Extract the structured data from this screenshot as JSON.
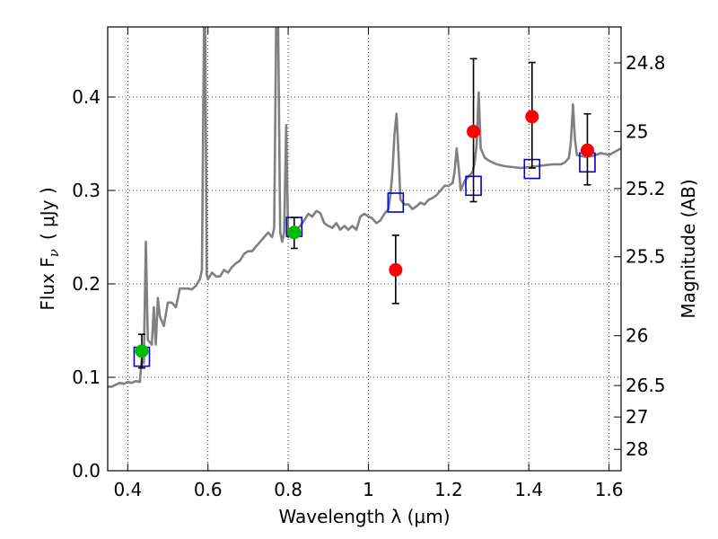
{
  "chart_data": {
    "type": "scatter",
    "title": "",
    "xlabel": "Wavelength  λ (μm)",
    "ylabel": "Flux  F",
    "ylabel_sub": "ν",
    "ylabel_unit": "( μJy )",
    "y2label": "Magnitude (AB)",
    "xlim": [
      0.35,
      1.63
    ],
    "ylim": [
      0.0,
      0.475
    ],
    "grid": true,
    "legend": "none",
    "x_ticks": [
      {
        "value": 0.4,
        "label": "0.4"
      },
      {
        "value": 0.6,
        "label": "0.6"
      },
      {
        "value": 0.8,
        "label": "0.8"
      },
      {
        "value": 1.0,
        "label": "1"
      },
      {
        "value": 1.2,
        "label": "1.2"
      },
      {
        "value": 1.4,
        "label": "1.4"
      },
      {
        "value": 1.6,
        "label": "1.6"
      }
    ],
    "y_ticks": [
      {
        "value": 0.0,
        "label": "0.0"
      },
      {
        "value": 0.1,
        "label": "0.1"
      },
      {
        "value": 0.2,
        "label": "0.2"
      },
      {
        "value": 0.3,
        "label": "0.3"
      },
      {
        "value": 0.4,
        "label": "0.4"
      }
    ],
    "mag_ticks": [
      {
        "value": 24.8,
        "label": "24.8"
      },
      {
        "value": 25.0,
        "label": "25"
      },
      {
        "value": 25.2,
        "label": "25.2"
      },
      {
        "value": 25.5,
        "label": "25.5"
      },
      {
        "value": 26.0,
        "label": "26"
      },
      {
        "value": 26.5,
        "label": "26.5"
      },
      {
        "value": 27.0,
        "label": "27"
      },
      {
        "value": 28.0,
        "label": "28"
      }
    ],
    "mag_zero_point": 23.9,
    "colors": {
      "model": "#808080",
      "green": "#00bb00",
      "red": "#ff0000",
      "blue": "#0000cc",
      "errorbar": "#000000"
    },
    "model_spectrum": [
      [
        0.35,
        0.09
      ],
      [
        0.36,
        0.09
      ],
      [
        0.37,
        0.092
      ],
      [
        0.38,
        0.094
      ],
      [
        0.39,
        0.093
      ],
      [
        0.4,
        0.095
      ],
      [
        0.41,
        0.094
      ],
      [
        0.42,
        0.096
      ],
      [
        0.43,
        0.095
      ],
      [
        0.435,
        0.12
      ],
      [
        0.44,
        0.115
      ],
      [
        0.445,
        0.245
      ],
      [
        0.45,
        0.14
      ],
      [
        0.46,
        0.135
      ],
      [
        0.465,
        0.175
      ],
      [
        0.47,
        0.135
      ],
      [
        0.475,
        0.185
      ],
      [
        0.48,
        0.165
      ],
      [
        0.49,
        0.155
      ],
      [
        0.5,
        0.18
      ],
      [
        0.51,
        0.18
      ],
      [
        0.52,
        0.175
      ],
      [
        0.53,
        0.195
      ],
      [
        0.54,
        0.195
      ],
      [
        0.55,
        0.195
      ],
      [
        0.56,
        0.194
      ],
      [
        0.57,
        0.198
      ],
      [
        0.58,
        0.205
      ],
      [
        0.585,
        0.215
      ],
      [
        0.59,
        0.475
      ],
      [
        0.593,
        0.475
      ],
      [
        0.597,
        0.21
      ],
      [
        0.6,
        0.205
      ],
      [
        0.61,
        0.212
      ],
      [
        0.62,
        0.208
      ],
      [
        0.63,
        0.208
      ],
      [
        0.64,
        0.215
      ],
      [
        0.65,
        0.212
      ],
      [
        0.66,
        0.218
      ],
      [
        0.67,
        0.222
      ],
      [
        0.68,
        0.225
      ],
      [
        0.69,
        0.232
      ],
      [
        0.7,
        0.235
      ],
      [
        0.71,
        0.235
      ],
      [
        0.72,
        0.24
      ],
      [
        0.73,
        0.245
      ],
      [
        0.74,
        0.25
      ],
      [
        0.75,
        0.255
      ],
      [
        0.76,
        0.25
      ],
      [
        0.765,
        0.26
      ],
      [
        0.77,
        0.475
      ],
      [
        0.775,
        0.475
      ],
      [
        0.78,
        0.255
      ],
      [
        0.785,
        0.245
      ],
      [
        0.79,
        0.255
      ],
      [
        0.795,
        0.37
      ],
      [
        0.8,
        0.25
      ],
      [
        0.81,
        0.255
      ],
      [
        0.82,
        0.258
      ],
      [
        0.83,
        0.262
      ],
      [
        0.84,
        0.268
      ],
      [
        0.85,
        0.275
      ],
      [
        0.86,
        0.272
      ],
      [
        0.87,
        0.278
      ],
      [
        0.88,
        0.276
      ],
      [
        0.89,
        0.265
      ],
      [
        0.9,
        0.262
      ],
      [
        0.91,
        0.26
      ],
      [
        0.92,
        0.265
      ],
      [
        0.93,
        0.258
      ],
      [
        0.94,
        0.262
      ],
      [
        0.95,
        0.258
      ],
      [
        0.96,
        0.262
      ],
      [
        0.97,
        0.258
      ],
      [
        0.98,
        0.272
      ],
      [
        0.99,
        0.275
      ],
      [
        1.0,
        0.272
      ],
      [
        1.01,
        0.27
      ],
      [
        1.02,
        0.265
      ],
      [
        1.03,
        0.268
      ],
      [
        1.04,
        0.275
      ],
      [
        1.05,
        0.28
      ],
      [
        1.055,
        0.295
      ],
      [
        1.06,
        0.32
      ],
      [
        1.065,
        0.36
      ],
      [
        1.07,
        0.382
      ],
      [
        1.075,
        0.34
      ],
      [
        1.08,
        0.29
      ],
      [
        1.09,
        0.285
      ],
      [
        1.1,
        0.285
      ],
      [
        1.11,
        0.28
      ],
      [
        1.12,
        0.283
      ],
      [
        1.13,
        0.287
      ],
      [
        1.14,
        0.285
      ],
      [
        1.15,
        0.29
      ],
      [
        1.16,
        0.292
      ],
      [
        1.17,
        0.295
      ],
      [
        1.18,
        0.3
      ],
      [
        1.19,
        0.305
      ],
      [
        1.2,
        0.305
      ],
      [
        1.21,
        0.308
      ],
      [
        1.215,
        0.32
      ],
      [
        1.22,
        0.345
      ],
      [
        1.225,
        0.325
      ],
      [
        1.23,
        0.3
      ],
      [
        1.24,
        0.31
      ],
      [
        1.25,
        0.315
      ],
      [
        1.26,
        0.32
      ],
      [
        1.265,
        0.33
      ],
      [
        1.27,
        0.35
      ],
      [
        1.275,
        0.405
      ],
      [
        1.28,
        0.345
      ],
      [
        1.29,
        0.335
      ],
      [
        1.3,
        0.332
      ],
      [
        1.32,
        0.328
      ],
      [
        1.34,
        0.326
      ],
      [
        1.36,
        0.325
      ],
      [
        1.38,
        0.324
      ],
      [
        1.4,
        0.325
      ],
      [
        1.42,
        0.326
      ],
      [
        1.44,
        0.327
      ],
      [
        1.46,
        0.328
      ],
      [
        1.48,
        0.328
      ],
      [
        1.49,
        0.33
      ],
      [
        1.5,
        0.335
      ],
      [
        1.505,
        0.352
      ],
      [
        1.51,
        0.392
      ],
      [
        1.515,
        0.355
      ],
      [
        1.52,
        0.338
      ],
      [
        1.53,
        0.337
      ],
      [
        1.54,
        0.336
      ],
      [
        1.56,
        0.337
      ],
      [
        1.58,
        0.34
      ],
      [
        1.6,
        0.338
      ],
      [
        1.63,
        0.345
      ]
    ],
    "observed_green": [
      {
        "x": 0.435,
        "y": 0.128,
        "yerr_low": 0.018,
        "yerr_high": 0.018
      },
      {
        "x": 0.815,
        "y": 0.255,
        "yerr_low": 0.017,
        "yerr_high": 0.016
      }
    ],
    "observed_red": [
      {
        "x": 1.068,
        "y": 0.215,
        "yerr_low": 0.036,
        "yerr_high": 0.037
      },
      {
        "x": 1.262,
        "y": 0.363,
        "yerr_low": 0.075,
        "yerr_high": 0.078
      },
      {
        "x": 1.408,
        "y": 0.379,
        "yerr_low": 0.055,
        "yerr_high": 0.058
      },
      {
        "x": 1.546,
        "y": 0.343,
        "yerr_low": 0.037,
        "yerr_high": 0.039
      }
    ],
    "model_bands": [
      {
        "x": 0.435,
        "y": 0.122
      },
      {
        "x": 0.815,
        "y": 0.261
      },
      {
        "x": 1.068,
        "y": 0.287
      },
      {
        "x": 1.262,
        "y": 0.305
      },
      {
        "x": 1.408,
        "y": 0.323
      },
      {
        "x": 1.546,
        "y": 0.33
      }
    ]
  }
}
